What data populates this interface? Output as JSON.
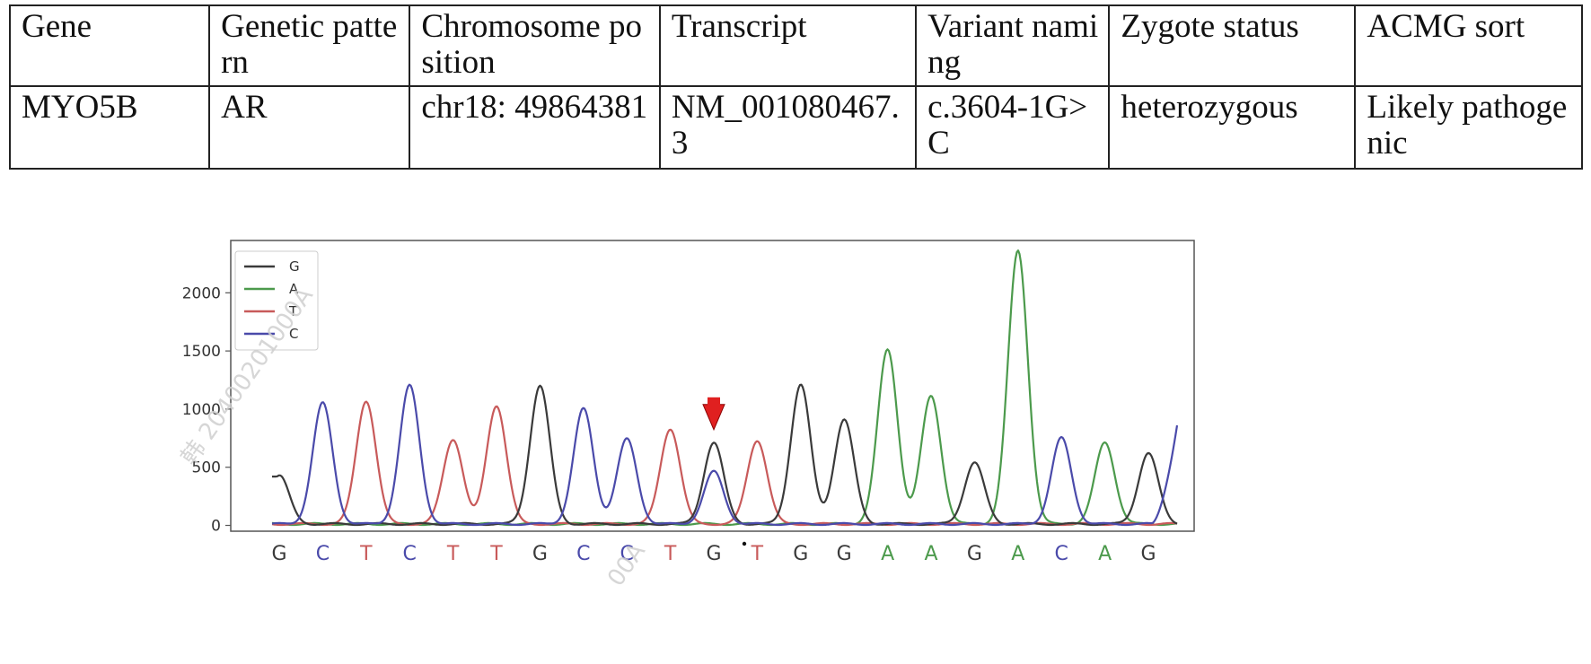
{
  "table": {
    "headers": [
      "Gene",
      "Genetic pattern",
      "Chromosome position",
      "Transcript",
      "Variant naming",
      "Zygote status",
      "ACMG sort"
    ],
    "row": [
      "MYO5B",
      "AR",
      "chr18: 49864381",
      "NM_001080467.3",
      "c.3604-1G>C",
      "heterozygous",
      "Likely pathogenic"
    ]
  },
  "watermark": {
    "top": "韩 20400201000A",
    "bottom": "00A"
  },
  "chart_data": {
    "type": "line",
    "title": "",
    "xlabel": "",
    "ylabel": "",
    "ylim": [
      -50,
      2450
    ],
    "yticks": [
      0,
      500,
      1000,
      1500,
      2000
    ],
    "legend": {
      "placement": "top-left",
      "entries": [
        {
          "name": "G",
          "color": "#3a3a3a"
        },
        {
          "name": "A",
          "color": "#4c9a4c"
        },
        {
          "name": "T",
          "color": "#c85a5a"
        },
        {
          "name": "C",
          "color": "#4a4aaa"
        }
      ]
    },
    "x_categories": [
      "G",
      "C",
      "T",
      "C",
      "T",
      "T",
      "G",
      "C",
      "C",
      "T",
      "G",
      "T",
      "G",
      "G",
      "A",
      "A",
      "G",
      "A",
      "C",
      "A",
      "G"
    ],
    "x_label_colors": {
      "G": "#3a3a3a",
      "A": "#4c9a4c",
      "T": "#c85a5a",
      "C": "#4a4aaa"
    },
    "peaks": [
      {
        "base": "G",
        "value": 420,
        "secondary": null
      },
      {
        "base": "C",
        "value": 1040,
        "secondary": null
      },
      {
        "base": "T",
        "value": 1060,
        "secondary": null
      },
      {
        "base": "C",
        "value": 1190,
        "secondary": null
      },
      {
        "base": "T",
        "value": 730,
        "secondary": null
      },
      {
        "base": "T",
        "value": 1020,
        "secondary": null
      },
      {
        "base": "G",
        "value": 1190,
        "secondary": null
      },
      {
        "base": "C",
        "value": 990,
        "secondary": null
      },
      {
        "base": "C",
        "value": 730,
        "secondary": null
      },
      {
        "base": "T",
        "value": 820,
        "secondary": null
      },
      {
        "base": "G",
        "value": 700,
        "secondary": {
          "base": "C",
          "value": 450
        }
      },
      {
        "base": "T",
        "value": 720,
        "secondary": null
      },
      {
        "base": "G",
        "value": 1200,
        "secondary": null
      },
      {
        "base": "G",
        "value": 900,
        "secondary": null
      },
      {
        "base": "A",
        "value": 1500,
        "secondary": null
      },
      {
        "base": "A",
        "value": 1100,
        "secondary": null
      },
      {
        "base": "G",
        "value": 530,
        "secondary": null
      },
      {
        "base": "A",
        "value": 2350,
        "secondary": null
      },
      {
        "base": "C",
        "value": 740,
        "secondary": null
      },
      {
        "base": "A",
        "value": 700,
        "secondary": null
      },
      {
        "base": "G",
        "value": 610,
        "secondary": null
      }
    ],
    "trailing": {
      "base": "C",
      "value": 900
    },
    "variant_marker_index": 10,
    "variant_marker_color": "#e02020"
  }
}
